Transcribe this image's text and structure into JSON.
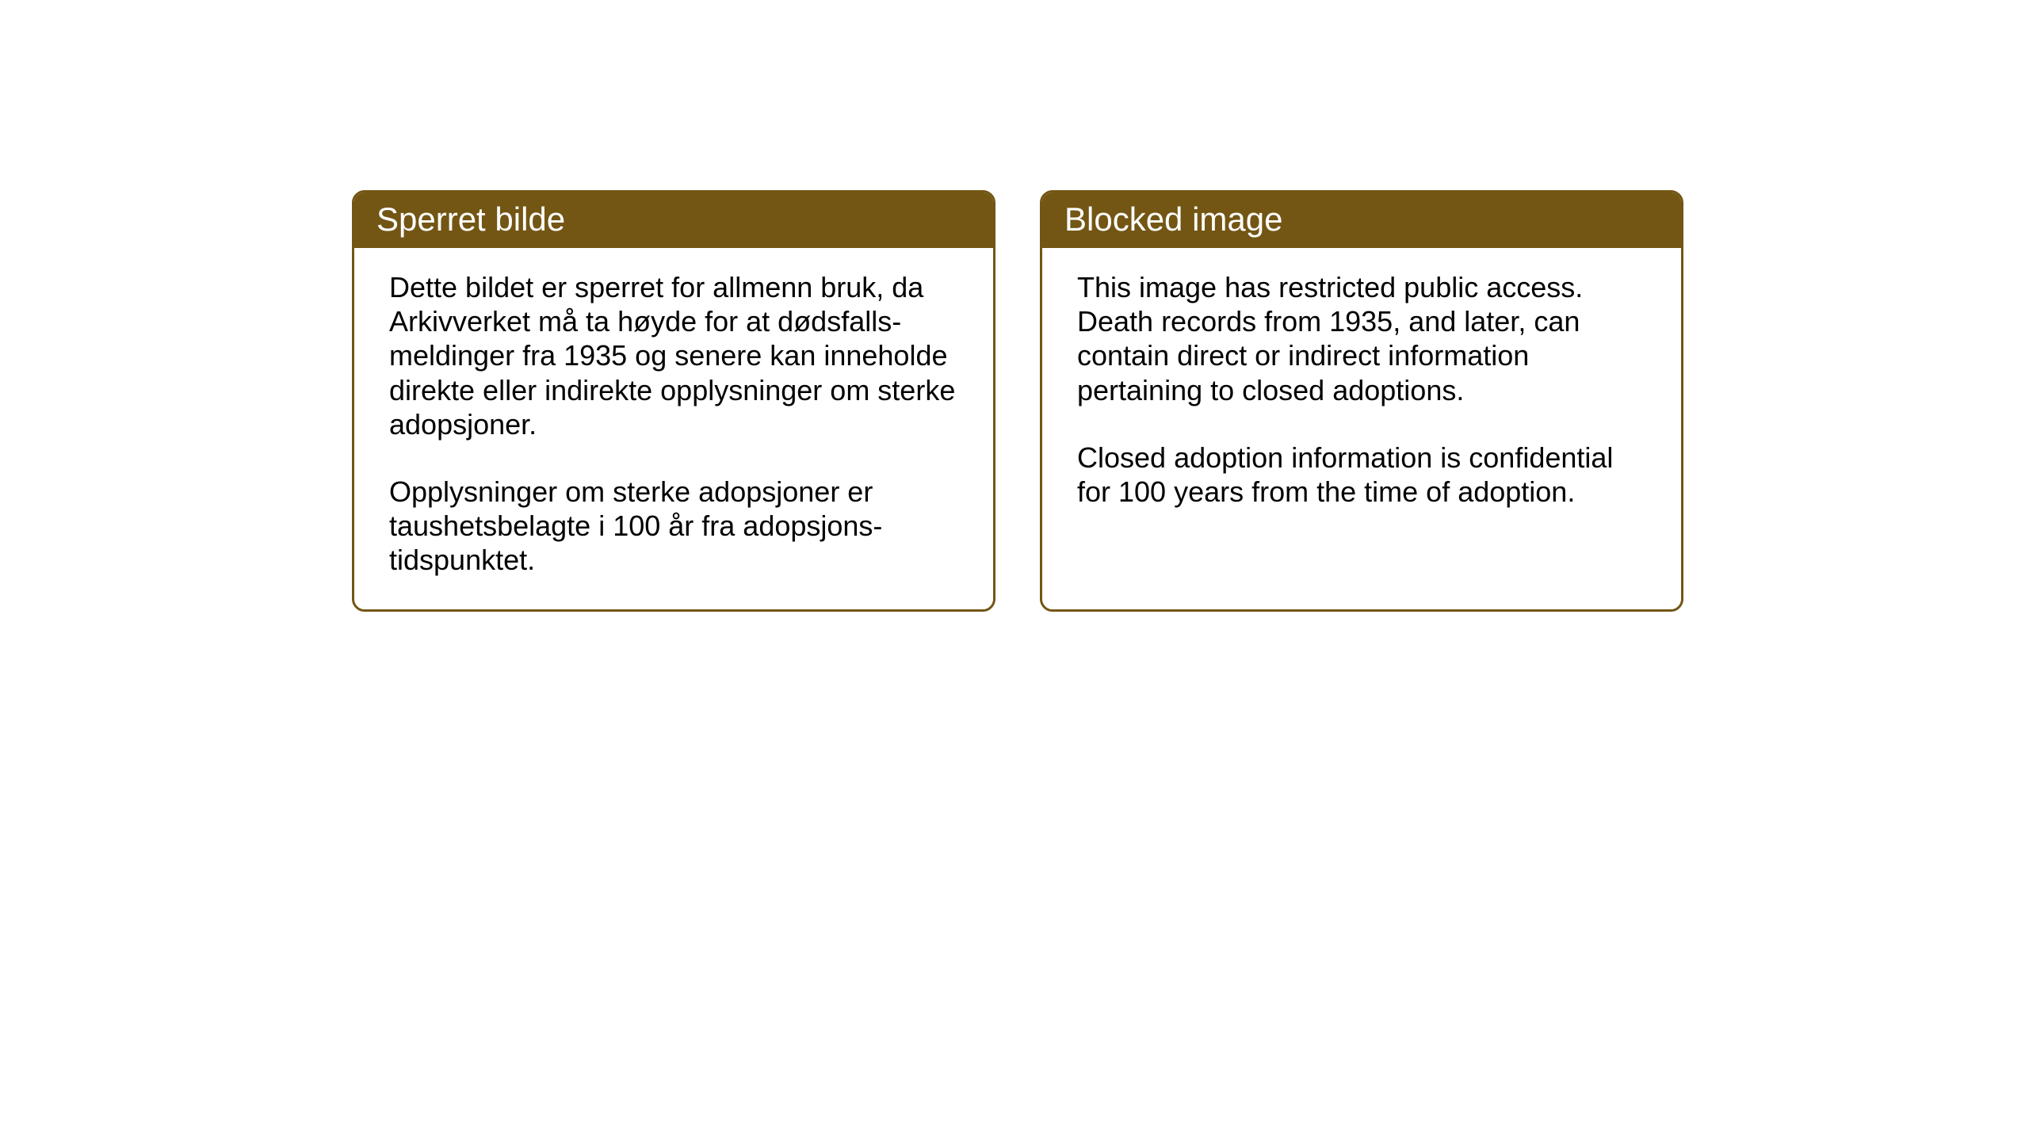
{
  "layout": {
    "background_color": "#ffffff",
    "card_border_color": "#735614",
    "card_header_bg": "#735614",
    "card_header_text_color": "#ffffff",
    "card_body_text_color": "#000000",
    "header_fontsize": 42,
    "body_fontsize": 36
  },
  "cards": {
    "norwegian": {
      "title": "Sperret bilde",
      "paragraph1": "Dette bildet er sperret for allmenn bruk, da Arkivverket må ta høyde for at dødsfalls-meldinger fra 1935 og senere kan inneholde direkte eller indirekte opplysninger om sterke adopsjoner.",
      "paragraph2": "Opplysninger om sterke adopsjoner er taushetsbelagte i 100 år fra adopsjons-tidspunktet."
    },
    "english": {
      "title": "Blocked image",
      "paragraph1": "This image has restricted public access. Death records from 1935, and later, can contain direct or indirect information pertaining to closed adoptions.",
      "paragraph2": "Closed adoption information is confidential for 100 years from the time of adoption."
    }
  }
}
